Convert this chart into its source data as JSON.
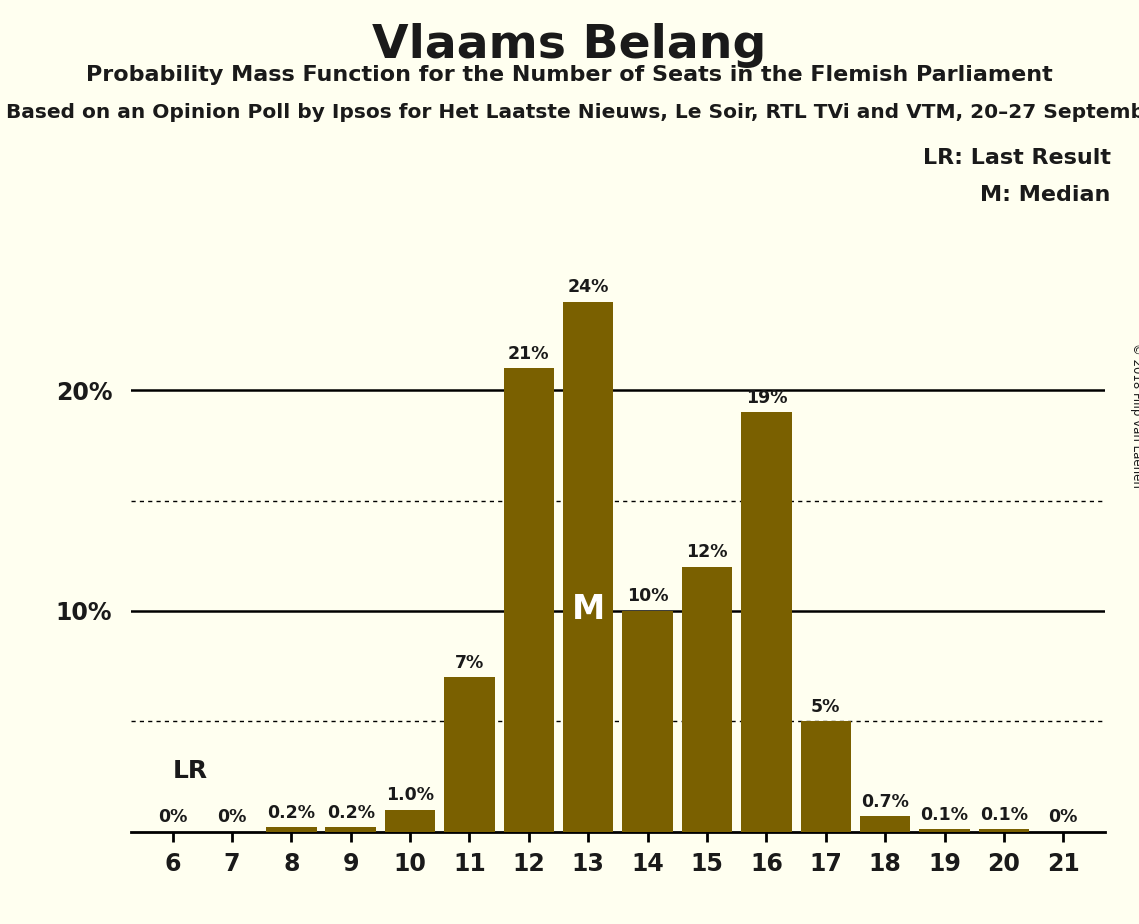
{
  "title": "Vlaams Belang",
  "subtitle1": "Probability Mass Function for the Number of Seats in the Flemish Parliament",
  "subtitle2": "Based on an Opinion Poll by Ipsos for Het Laatste Nieuws, Le Soir, RTL TVi and VTM, 20–27 Septemb",
  "copyright": "© 2018 Filip van Laenen",
  "seats": [
    6,
    7,
    8,
    9,
    10,
    11,
    12,
    13,
    14,
    15,
    16,
    17,
    18,
    19,
    20,
    21
  ],
  "probabilities": [
    0.0,
    0.0,
    0.2,
    0.2,
    1.0,
    7.0,
    21.0,
    24.0,
    10.0,
    12.0,
    19.0,
    5.0,
    0.7,
    0.1,
    0.1,
    0.0
  ],
  "bar_color": "#7a6000",
  "background_color": "#fffff0",
  "text_color": "#1a1a1a",
  "median_seat": 13,
  "last_result_seat": 6,
  "legend_lr": "LR: Last Result",
  "legend_m": "M: Median",
  "ylim": [
    0,
    27
  ]
}
